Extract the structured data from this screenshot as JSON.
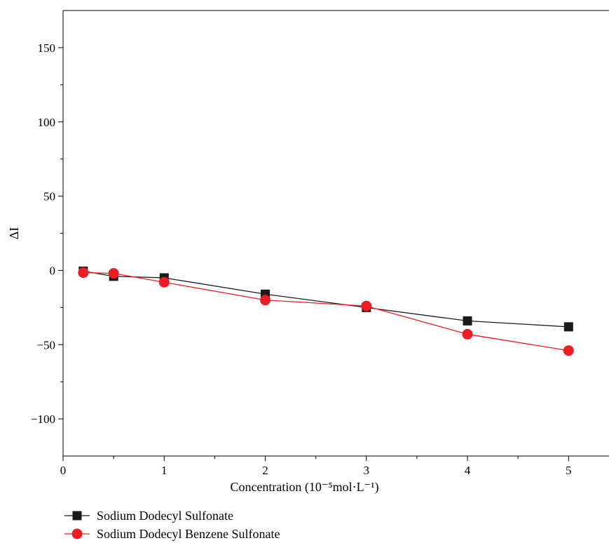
{
  "chart_data": {
    "type": "line",
    "xlabel": "Concentration (10⁻⁵mol·L⁻¹)",
    "ylabel": "ΔI",
    "xlim": [
      0,
      5.4
    ],
    "ylim": [
      -125,
      175
    ],
    "xticks": [
      0,
      1,
      2,
      3,
      4,
      5
    ],
    "yticks": [
      -100,
      -50,
      0,
      50,
      100,
      150
    ],
    "series": [
      {
        "name": "Sodium Dodecyl Sulfonate",
        "color": "#1a1a1a",
        "marker": "square",
        "x": [
          0.2,
          0.5,
          1,
          2,
          3,
          4,
          5
        ],
        "y": [
          -0.5,
          -4,
          -5,
          -16,
          -25,
          -34,
          -38
        ]
      },
      {
        "name": "Sodium Dodecyl Benzene Sulfonate",
        "color": "#ee1c24",
        "marker": "circle",
        "x": [
          0.2,
          0.5,
          1,
          2,
          3,
          4,
          5
        ],
        "y": [
          -1.5,
          -2,
          -8,
          -20,
          -24,
          -43,
          -54
        ]
      }
    ],
    "legend_position": "bottom-left",
    "grid": false
  }
}
